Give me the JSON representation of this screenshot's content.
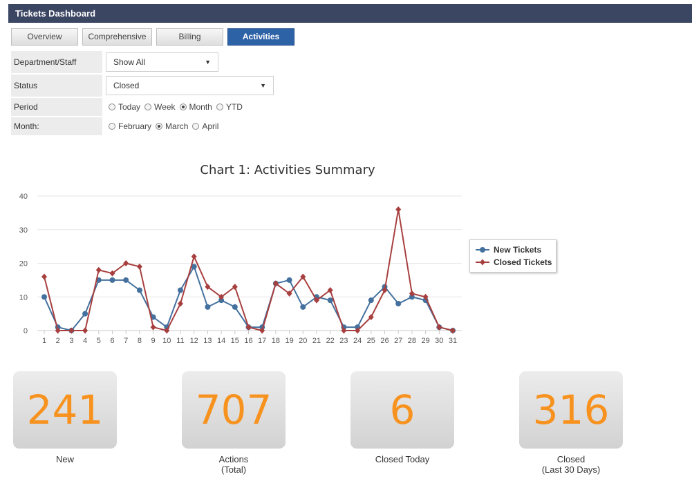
{
  "header": {
    "title": "Tickets Dashboard"
  },
  "tabs": [
    {
      "label": "Overview",
      "active": false
    },
    {
      "label": "Comprehensive",
      "active": false
    },
    {
      "label": "Billing",
      "active": false
    },
    {
      "label": "Activities",
      "active": true
    }
  ],
  "filters": {
    "department": {
      "label": "Department/Staff",
      "value": "Show All"
    },
    "status": {
      "label": "Status",
      "value": "Closed"
    },
    "period": {
      "label": "Period",
      "options": [
        "Today",
        "Week",
        "Month",
        "YTD"
      ],
      "selected": "Month"
    },
    "month": {
      "label": "Month:",
      "options": [
        "February",
        "March",
        "April"
      ],
      "selected": "March"
    }
  },
  "chart_data": {
    "type": "line",
    "title": "Chart 1: Activities Summary",
    "x": [
      1,
      2,
      3,
      4,
      5,
      6,
      7,
      8,
      9,
      10,
      11,
      12,
      13,
      14,
      15,
      16,
      17,
      18,
      19,
      20,
      21,
      22,
      23,
      24,
      25,
      26,
      27,
      28,
      29,
      30,
      31
    ],
    "ylim": [
      0,
      40
    ],
    "yticks": [
      0,
      10,
      20,
      30,
      40
    ],
    "grid": true,
    "legend_position": "right",
    "series": [
      {
        "name": "New Tickets",
        "color": "#44709e",
        "marker": "circle",
        "values": [
          10,
          1,
          0,
          5,
          15,
          15,
          15,
          12,
          4,
          1,
          12,
          19,
          7,
          9,
          7,
          1,
          1,
          14,
          15,
          7,
          10,
          9,
          1,
          1,
          9,
          13,
          8,
          10,
          9,
          1,
          0
        ]
      },
      {
        "name": "Closed Tickets",
        "color": "#a83f3f",
        "marker": "diamond",
        "values": [
          16,
          0,
          0,
          0,
          18,
          17,
          20,
          19,
          1,
          0,
          8,
          22,
          13,
          10,
          13,
          1,
          0,
          14,
          11,
          16,
          9,
          12,
          0,
          0,
          4,
          12,
          36,
          11,
          10,
          1,
          0
        ]
      }
    ]
  },
  "stats": [
    {
      "value": "241",
      "label": "New",
      "sublabel": ""
    },
    {
      "value": "707",
      "label": "Actions",
      "sublabel": "(Total)"
    },
    {
      "value": "6",
      "label": "Closed Today",
      "sublabel": ""
    },
    {
      "value": "316",
      "label": "Closed",
      "sublabel": "(Last 30 Days)"
    }
  ]
}
